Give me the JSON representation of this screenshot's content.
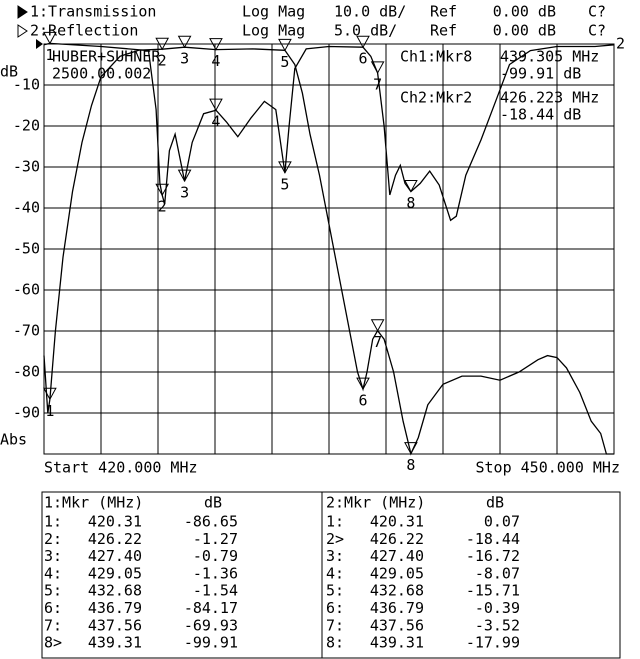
{
  "chart_data": {
    "type": "line",
    "brand": "HUBER+SUHNER",
    "serial": "2500.00.002",
    "y_unit": "dB",
    "y_mode": "Abs",
    "start_label": "Start 420.000 MHz",
    "stop_label": "Stop 450.000 MHz",
    "readouts": [
      [
        "Ch1:Mkr8",
        "439.305 MHz",
        "-99.91 dB"
      ],
      [
        "Ch2:Mkr2",
        "426.223 MHz",
        "-18.44 dB"
      ]
    ],
    "xlim": [
      420,
      450
    ],
    "ylim": [
      -100,
      0
    ],
    "yticks": [
      -90,
      -80,
      -70,
      -60,
      -50,
      -40,
      -30,
      -20,
      -10
    ],
    "y2lim": [
      -50,
      0
    ],
    "grid": true,
    "series": [
      {
        "name": "1:Transmission",
        "format": "Log Mag",
        "scale": "10.0 dB/",
        "ref_label": "Ref",
        "ref": "0.00 dB",
        "status": "C?",
        "color": "#000000",
        "x": [
          420.0,
          420.2,
          420.31,
          420.6,
          421.0,
          421.5,
          422.0,
          422.5,
          423.0,
          424.0,
          425.0,
          426.22,
          427.4,
          429.05,
          431.0,
          432.68,
          433.2,
          433.6,
          434.0,
          434.5,
          435.0,
          435.5,
          436.0,
          436.5,
          436.79,
          437.0,
          437.3,
          437.56,
          437.9,
          438.4,
          438.9,
          439.31,
          439.7,
          440.2,
          441.0,
          442.0,
          443.0,
          444.0,
          445.0,
          446.0,
          446.5,
          447.0,
          447.5,
          448.2,
          448.8,
          449.3,
          449.6,
          450.0
        ],
        "values": [
          -76,
          -90,
          -86.65,
          -70,
          -52,
          -36,
          -24,
          -15,
          -8,
          -3,
          -1.5,
          -1.27,
          -0.79,
          -1.36,
          -1.2,
          -1.54,
          -5,
          -12,
          -22,
          -32,
          -44,
          -56,
          -68,
          -80,
          -84.17,
          -80,
          -72,
          -69.93,
          -72,
          -80,
          -92,
          -99.91,
          -96,
          -88,
          -83,
          -81,
          -81,
          -82,
          -80,
          -77,
          -76,
          -76.5,
          -79,
          -85,
          -92,
          -95,
          -100,
          -100
        ]
      },
      {
        "name": "2:Reflection",
        "format": "Log Mag",
        "scale": "5.0 dB/",
        "ref_label": "Ref",
        "ref": "0.00 dB",
        "status": "C?",
        "color": "#000000",
        "axis": "y2",
        "x": [
          420.0,
          420.31,
          423.0,
          425.5,
          425.9,
          426.1,
          426.22,
          426.35,
          426.6,
          426.9,
          427.4,
          427.8,
          428.4,
          429.05,
          429.6,
          430.2,
          430.9,
          431.6,
          432.2,
          432.68,
          432.9,
          433.2,
          433.8,
          435.0,
          436.79,
          437.2,
          437.56,
          437.9,
          438.2,
          438.5,
          438.75,
          439.0,
          439.31,
          439.8,
          440.3,
          440.8,
          441.4,
          441.7,
          442.2,
          443.0,
          443.8,
          444.5,
          445.6,
          447.0,
          449.0,
          450.0
        ],
        "values": [
          -0.1,
          0.07,
          -0.3,
          -0.8,
          -8,
          -17,
          -18.44,
          -19.5,
          -13,
          -11,
          -16.72,
          -12,
          -8.5,
          -8.07,
          -9.5,
          -11.3,
          -9,
          -7,
          -8,
          -15.71,
          -10,
          -3,
          -0.6,
          -0.3,
          -0.39,
          -1.5,
          -3.52,
          -10,
          -18.4,
          -16,
          -14.8,
          -17,
          -17.99,
          -17,
          -15.5,
          -17.2,
          -21.5,
          -21,
          -16,
          -11.7,
          -6.8,
          -2.5,
          -0.8,
          -0.3,
          -0.3,
          -0.1
        ]
      }
    ],
    "markers": {
      "numbers": [
        "1",
        "2",
        "3",
        "4",
        "5",
        "6",
        "7",
        "8"
      ],
      "header1": [
        "1:Mkr (MHz)",
        "dB"
      ],
      "header2": [
        "2:Mkr (MHz)",
        "dB"
      ],
      "ids1": [
        "1:",
        "2:",
        "3:",
        "4:",
        "5:",
        "6:",
        "7:",
        "8>"
      ],
      "ids2": [
        "1:",
        "2>",
        "3:",
        "4:",
        "5:",
        "6:",
        "7:",
        "8:"
      ],
      "freqs": [
        420.31,
        426.22,
        {
          "value": 427.4,
          "label": "427.40"
        },
        429.05,
        432.68,
        436.79,
        437.56,
        439.31
      ],
      "trace1": [
        -86.65,
        -1.27,
        -0.79,
        -1.36,
        -1.54,
        -84.17,
        -69.93,
        -99.91
      ],
      "trace2": [
        0.07,
        -18.44,
        -16.72,
        -8.07,
        -15.71,
        -0.39,
        -3.52,
        -17.99
      ]
    }
  }
}
